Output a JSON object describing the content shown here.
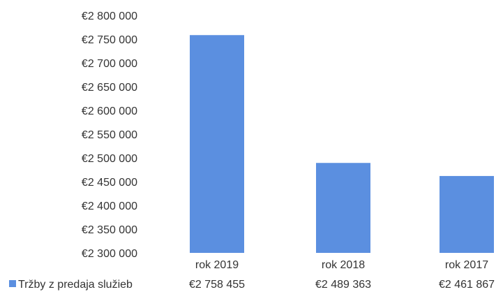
{
  "chart_data": {
    "type": "bar",
    "categories": [
      "rok 2019",
      "rok 2018",
      "rok 2017"
    ],
    "series": [
      {
        "name": "Tržby z predaja služieb",
        "values": [
          2758455,
          2489363,
          2461867
        ],
        "value_labels": [
          "€2 758 455",
          "€2 489 363",
          "€2 461 867"
        ],
        "color": "#5b8fe0"
      }
    ],
    "ylim": [
      2300000,
      2800000
    ],
    "yticks": [
      2300000,
      2350000,
      2400000,
      2450000,
      2500000,
      2550000,
      2600000,
      2650000,
      2700000,
      2750000,
      2800000
    ],
    "ytick_labels": [
      "€2 300 000",
      "€2 350 000",
      "€2 400 000",
      "€2 450 000",
      "€2 500 000",
      "€2 550 000",
      "€2 600 000",
      "€2 650 000",
      "€2 700 000",
      "€2 750 000",
      "€2 800 000"
    ],
    "grid": false,
    "legend": "bottom-left (data table)",
    "title": "",
    "xlabel": "",
    "ylabel": ""
  }
}
